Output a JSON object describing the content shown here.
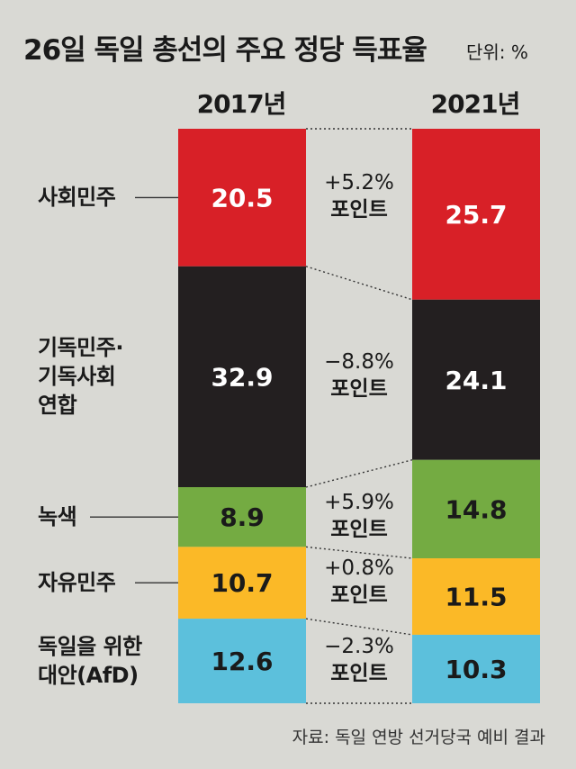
{
  "title": "26일 독일 총선의 주요 정당 득표율",
  "unit": "단위: %",
  "source": "자료: 독일 연방 선거당국 예비 결과",
  "chart_data": {
    "type": "bar",
    "stacked": true,
    "categories": [
      "2017년",
      "2021년"
    ],
    "series": [
      {
        "name": "사회민주",
        "label_lines": [
          "사회민주"
        ],
        "values": [
          20.5,
          25.7
        ],
        "color": "#d82027",
        "text_color": "#ffffff",
        "change": [
          "+5.2%",
          "포인트"
        ]
      },
      {
        "name": "기독민주·기독사회 연합",
        "label_lines": [
          "기독민주·",
          "기독사회",
          "연합"
        ],
        "values": [
          32.9,
          24.1
        ],
        "color": "#231f20",
        "text_color": "#ffffff",
        "change": [
          "−8.8%",
          "포인트"
        ]
      },
      {
        "name": "녹색",
        "label_lines": [
          "녹색"
        ],
        "values": [
          8.9,
          14.8
        ],
        "color": "#74ab42",
        "text_color": "#1a1a1a",
        "change": [
          "+5.9%",
          "포인트"
        ]
      },
      {
        "name": "자유민주",
        "label_lines": [
          "자유민주"
        ],
        "values": [
          10.7,
          11.5
        ],
        "color": "#fbb927",
        "text_color": "#1a1a1a",
        "change": [
          "+0.8%",
          "포인트"
        ]
      },
      {
        "name": "독일을 위한 대안(AfD)",
        "label_lines": [
          "독일을 위한",
          "대안(AfD)"
        ],
        "values": [
          12.6,
          10.3
        ],
        "color": "#5cc0dc",
        "text_color": "#1a1a1a",
        "change": [
          "−2.3%",
          "포인트"
        ]
      }
    ]
  }
}
